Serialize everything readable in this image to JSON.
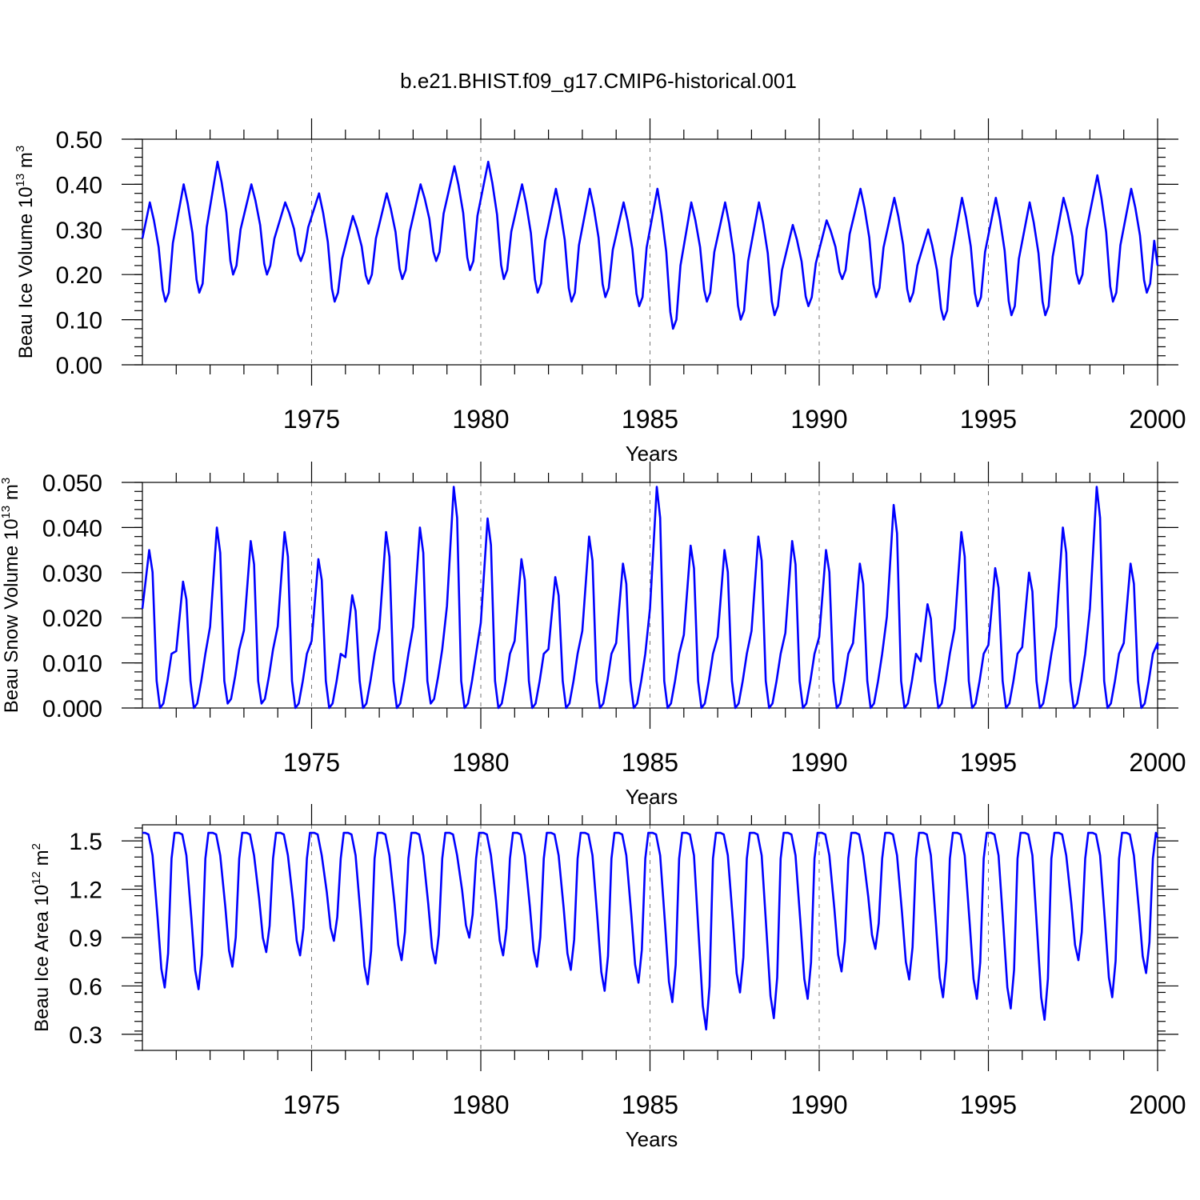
{
  "title": "b.e21.BHIST.f09_g17.CMIP6-historical.001",
  "chart_data": [
    {
      "type": "line",
      "name": "panel-ice-volume",
      "ylabel": "Beau Ice Volume 10",
      "ylabel_exp": "13",
      "ylabel_unit": " m",
      "ylabel_unit_exp": "3",
      "xlabel": "Years",
      "xlim": [
        1970.0,
        2000.0
      ],
      "ylim": [
        0.0,
        0.5
      ],
      "yticks": [
        0.0,
        0.1,
        0.2,
        0.3,
        0.4,
        0.5
      ],
      "ytick_labels": [
        "0.00",
        "0.10",
        "0.20",
        "0.30",
        "0.40",
        "0.50"
      ],
      "xticks": [
        1975,
        1980,
        1985,
        1990,
        1995,
        2000
      ],
      "xtick_labels": [
        "1975",
        "1980",
        "1985",
        "1990",
        "1995",
        "2000"
      ],
      "grid_x": true,
      "series": [
        {
          "name": "ice_volume",
          "color": "#0000ff",
          "peaks": [
            0.36,
            0.4,
            0.45,
            0.4,
            0.36,
            0.38,
            0.33,
            0.38,
            0.4,
            0.44,
            0.45,
            0.4,
            0.39,
            0.39,
            0.36,
            0.39,
            0.36,
            0.36,
            0.36,
            0.31,
            0.32,
            0.39,
            0.37,
            0.3,
            0.37,
            0.37,
            0.36,
            0.37,
            0.42,
            0.39
          ],
          "troughs": [
            0.15,
            0.14,
            0.16,
            0.2,
            0.2,
            0.23,
            0.14,
            0.18,
            0.19,
            0.23,
            0.21,
            0.19,
            0.16,
            0.14,
            0.15,
            0.13,
            0.08,
            0.14,
            0.1,
            0.11,
            0.13,
            0.19,
            0.15,
            0.14,
            0.1,
            0.13,
            0.11,
            0.11,
            0.18,
            0.14,
            0.16
          ],
          "start": 0.28,
          "end": 0.22
        }
      ]
    },
    {
      "type": "line",
      "name": "panel-snow-volume",
      "ylabel": "Beau Snow Volume 10",
      "ylabel_exp": "13",
      "ylabel_unit": " m",
      "ylabel_unit_exp": "3",
      "xlabel": "Years",
      "xlim": [
        1970.0,
        2000.0
      ],
      "ylim": [
        0.0,
        0.05
      ],
      "yticks": [
        0.0,
        0.01,
        0.02,
        0.03,
        0.04,
        0.05
      ],
      "ytick_labels": [
        "0.000",
        "0.010",
        "0.020",
        "0.030",
        "0.040",
        "0.050"
      ],
      "xticks": [
        1975,
        1980,
        1985,
        1990,
        1995,
        2000
      ],
      "xtick_labels": [
        "1975",
        "1980",
        "1985",
        "1990",
        "1995",
        "2000"
      ],
      "grid_x": true,
      "series": [
        {
          "name": "snow_volume",
          "color": "#0000ff",
          "peaks": [
            0.035,
            0.028,
            0.04,
            0.037,
            0.039,
            0.033,
            0.025,
            0.039,
            0.04,
            0.049,
            0.042,
            0.033,
            0.029,
            0.038,
            0.032,
            0.049,
            0.036,
            0.035,
            0.038,
            0.037,
            0.035,
            0.032,
            0.045,
            0.023,
            0.039,
            0.031,
            0.03,
            0.04,
            0.049,
            0.032
          ],
          "troughs": [
            0.0,
            0.0,
            0.0,
            0.001,
            0.001,
            0.0,
            0.0,
            0.0,
            0.0,
            0.001,
            0.0,
            0.0,
            0.0,
            0.0,
            0.0,
            0.0,
            0.0,
            0.0,
            0.0,
            0.0,
            0.0,
            0.0,
            0.0,
            0.0,
            0.0,
            0.0,
            0.0,
            0.0,
            0.0,
            0.0,
            0.0
          ],
          "start": 0.022,
          "end": 0.013
        }
      ]
    },
    {
      "type": "line",
      "name": "panel-ice-area",
      "ylabel": "Beau Ice Area 10",
      "ylabel_exp": "12",
      "ylabel_unit": " m",
      "ylabel_unit_exp": "2",
      "xlabel": "Years",
      "xlim": [
        1970.0,
        2000.0
      ],
      "ylim": [
        0.2,
        1.6
      ],
      "yticks": [
        0.3,
        0.6,
        0.9,
        1.2,
        1.5
      ],
      "ytick_labels": [
        "0.3",
        "0.6",
        "0.9",
        "1.2",
        "1.5"
      ],
      "xticks": [
        1975,
        1980,
        1985,
        1990,
        1995,
        2000
      ],
      "xtick_labels": [
        "1975",
        "1980",
        "1985",
        "1990",
        "1995",
        "2000"
      ],
      "grid_x": true,
      "series": [
        {
          "name": "ice_area",
          "color": "#0000ff",
          "plateau": 1.55,
          "troughs": [
            0.59,
            0.58,
            0.72,
            0.81,
            0.79,
            0.88,
            0.61,
            0.76,
            0.74,
            0.9,
            0.79,
            0.72,
            0.7,
            0.57,
            0.62,
            0.5,
            0.33,
            0.56,
            0.4,
            0.52,
            0.69,
            0.83,
            0.64,
            0.53,
            0.52,
            0.46,
            0.39,
            0.76,
            0.53,
            0.68
          ],
          "start": 1.55,
          "end": 1.52
        }
      ]
    }
  ]
}
